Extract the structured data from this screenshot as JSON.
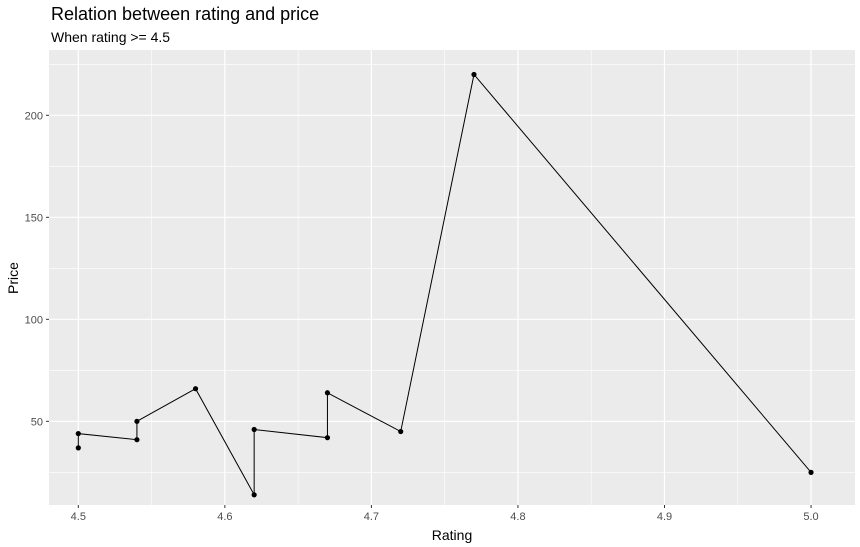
{
  "chart_data": {
    "type": "line",
    "title": "Relation between rating and price",
    "subtitle": "When rating >= 4.5",
    "xlabel": "Rating",
    "ylabel": "Price",
    "xlim": [
      4.48,
      5.03
    ],
    "ylim": [
      9,
      232
    ],
    "x_ticks": [
      4.5,
      4.6,
      4.7,
      4.8,
      4.9,
      5.0
    ],
    "x_tick_labels": [
      "4.5",
      "4.6",
      "4.7",
      "4.8",
      "4.9",
      "5.0"
    ],
    "y_ticks": [
      50,
      100,
      150,
      200
    ],
    "y_tick_labels": [
      "50",
      "100",
      "150",
      "200"
    ],
    "grid": true,
    "points": [
      {
        "x": 4.5,
        "y": 37
      },
      {
        "x": 4.5,
        "y": 44
      },
      {
        "x": 4.54,
        "y": 41
      },
      {
        "x": 4.54,
        "y": 50
      },
      {
        "x": 4.58,
        "y": 66
      },
      {
        "x": 4.62,
        "y": 14
      },
      {
        "x": 4.62,
        "y": 46
      },
      {
        "x": 4.67,
        "y": 42
      },
      {
        "x": 4.67,
        "y": 64
      },
      {
        "x": 4.72,
        "y": 45
      },
      {
        "x": 4.77,
        "y": 220
      },
      {
        "x": 5.0,
        "y": 25
      }
    ],
    "colors": {
      "panel": "#ebebeb",
      "grid": "#ffffff",
      "line": "#000000",
      "point": "#000000"
    }
  }
}
